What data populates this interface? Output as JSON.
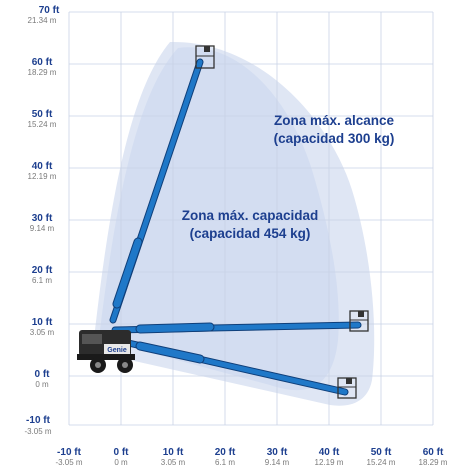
{
  "y_axis": [
    {
      "ft": "70 ft",
      "m": "21.34 m"
    },
    {
      "ft": "60 ft",
      "m": "18.29 m"
    },
    {
      "ft": "50 ft",
      "m": "15.24 m"
    },
    {
      "ft": "40 ft",
      "m": "12.19 m"
    },
    {
      "ft": "30 ft",
      "m": "9.14 m"
    },
    {
      "ft": "20 ft",
      "m": "6.1 m"
    },
    {
      "ft": "10 ft",
      "m": "3.05 m"
    },
    {
      "ft": "0 ft",
      "m": "0 m"
    },
    {
      "ft": "-10 ft",
      "m": "-3.05 m"
    }
  ],
  "x_axis": [
    {
      "ft": "-10 ft",
      "m": "-3.05 m"
    },
    {
      "ft": "0 ft",
      "m": "0 m"
    },
    {
      "ft": "10 ft",
      "m": "3.05 m"
    },
    {
      "ft": "20 ft",
      "m": "6.1 m"
    },
    {
      "ft": "30 ft",
      "m": "9.14 m"
    },
    {
      "ft": "40 ft",
      "m": "12.19 m"
    },
    {
      "ft": "50 ft",
      "m": "15.24 m"
    },
    {
      "ft": "60 ft",
      "m": "18.29 m"
    }
  ],
  "zones": {
    "max_reach_line1": "Zona máx. alcance",
    "max_reach_line2": "(capacidad 300 kg)",
    "max_capacity_line1": "Zona máx. capacidad",
    "max_capacity_line2": "(capacidad 454 kg)"
  },
  "machine_brand": "Genie",
  "colors": {
    "boom": "#1f78c8",
    "zone_outer": "#dfe6f4",
    "zone_inner": "#bfcde9",
    "label": "#1d3f8f"
  }
}
